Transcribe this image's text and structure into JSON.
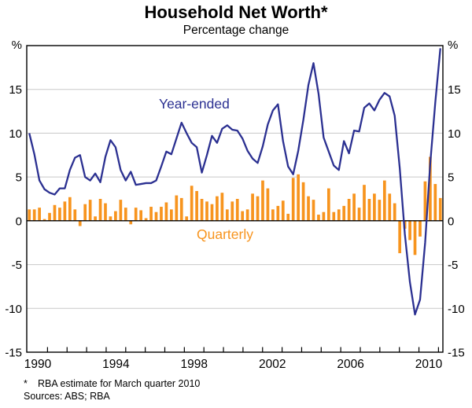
{
  "page": {
    "title": "Household Net Worth*",
    "subtitle": "Percentage change"
  },
  "colors": {
    "line": "#2b3091",
    "bar": "#f7941e",
    "grid": "#c8c8c8",
    "axis": "#000000",
    "background": "#ffffff"
  },
  "chart_data": {
    "type": "bar+line",
    "title": "Household Net Worth*",
    "subtitle": "Percentage change",
    "unit_left": "%",
    "unit_right": "%",
    "ylim": [
      -15,
      20
    ],
    "ytick_values": [
      15,
      10,
      5,
      0,
      -5,
      -10,
      -15
    ],
    "xtick_labels": [
      "1990",
      "1994",
      "1998",
      "2002",
      "2006",
      "2010"
    ],
    "grid": "horizontal",
    "legend_annotations": [
      {
        "text": "Year-ended",
        "series": "line"
      },
      {
        "text": "Quarterly",
        "series": "bar"
      }
    ],
    "quarters": [
      "1989Q4",
      "1990Q1",
      "1990Q2",
      "1990Q3",
      "1990Q4",
      "1991Q1",
      "1991Q2",
      "1991Q3",
      "1991Q4",
      "1992Q1",
      "1992Q2",
      "1992Q3",
      "1992Q4",
      "1993Q1",
      "1993Q2",
      "1993Q3",
      "1993Q4",
      "1994Q1",
      "1994Q2",
      "1994Q3",
      "1994Q4",
      "1995Q1",
      "1995Q2",
      "1995Q3",
      "1995Q4",
      "1996Q1",
      "1996Q2",
      "1996Q3",
      "1996Q4",
      "1997Q1",
      "1997Q2",
      "1997Q3",
      "1997Q4",
      "1998Q1",
      "1998Q2",
      "1998Q3",
      "1998Q4",
      "1999Q1",
      "1999Q2",
      "1999Q3",
      "1999Q4",
      "2000Q1",
      "2000Q2",
      "2000Q3",
      "2000Q4",
      "2001Q1",
      "2001Q2",
      "2001Q3",
      "2001Q4",
      "2002Q1",
      "2002Q2",
      "2002Q3",
      "2002Q4",
      "2003Q1",
      "2003Q2",
      "2003Q3",
      "2003Q4",
      "2004Q1",
      "2004Q2",
      "2004Q3",
      "2004Q4",
      "2005Q1",
      "2005Q2",
      "2005Q3",
      "2005Q4",
      "2006Q1",
      "2006Q2",
      "2006Q3",
      "2006Q4",
      "2007Q1",
      "2007Q2",
      "2007Q3",
      "2007Q4",
      "2008Q1",
      "2008Q2",
      "2008Q3",
      "2008Q4",
      "2009Q1",
      "2009Q2",
      "2009Q3",
      "2009Q4",
      "2010Q1"
    ],
    "series": [
      {
        "name": "Year-ended",
        "type": "line",
        "color": "#2b3091",
        "values": [
          10.0,
          7.6,
          4.6,
          3.6,
          3.2,
          3.0,
          3.7,
          3.7,
          5.8,
          7.2,
          7.5,
          5.0,
          4.6,
          5.4,
          4.4,
          7.3,
          9.2,
          8.4,
          5.8,
          4.6,
          5.6,
          4.1,
          4.2,
          4.3,
          4.3,
          4.6,
          6.2,
          7.9,
          7.6,
          9.4,
          11.2,
          10.0,
          8.9,
          8.4,
          5.5,
          7.5,
          9.7,
          8.9,
          10.5,
          10.9,
          10.4,
          10.3,
          9.4,
          8.0,
          7.1,
          6.6,
          8.5,
          11.0,
          12.6,
          13.3,
          9.1,
          6.2,
          5.3,
          8.0,
          11.5,
          15.5,
          18.0,
          14.5,
          9.5,
          7.9,
          6.3,
          5.8,
          9.1,
          7.7,
          10.3,
          10.2,
          12.9,
          13.4,
          12.6,
          13.8,
          14.6,
          14.2,
          12.0,
          6.0,
          -1.5,
          -7.0,
          -10.7,
          -9.0,
          -2.5,
          6.5,
          13.5,
          19.7
        ]
      },
      {
        "name": "Quarterly",
        "type": "bar",
        "color": "#f7941e",
        "values": [
          1.3,
          1.3,
          1.5,
          0.2,
          0.9,
          1.8,
          1.5,
          2.2,
          2.7,
          1.3,
          -0.6,
          1.9,
          2.4,
          0.5,
          2.5,
          2.0,
          0.5,
          1.1,
          2.4,
          1.5,
          -0.4,
          1.5,
          1.2,
          0.3,
          1.6,
          1.0,
          1.6,
          2.1,
          1.3,
          2.9,
          2.6,
          0.5,
          4.0,
          3.4,
          2.5,
          2.2,
          1.9,
          2.8,
          3.2,
          1.3,
          2.2,
          2.5,
          1.1,
          1.3,
          3.1,
          2.8,
          4.6,
          3.7,
          1.3,
          1.7,
          2.3,
          0.8,
          4.9,
          5.3,
          4.4,
          2.8,
          2.4,
          0.7,
          1.0,
          3.7,
          1.0,
          1.3,
          1.7,
          2.5,
          3.1,
          1.5,
          4.1,
          2.5,
          3.1,
          2.4,
          4.6,
          3.1,
          2.0,
          -3.7,
          -0.9,
          -2.2,
          -3.9,
          -1.8,
          4.5,
          7.3,
          4.2,
          2.6
        ]
      }
    ],
    "footnote_marker": "*",
    "footnote": "RBA estimate for March quarter 2010",
    "sources": "Sources: ABS; RBA"
  }
}
